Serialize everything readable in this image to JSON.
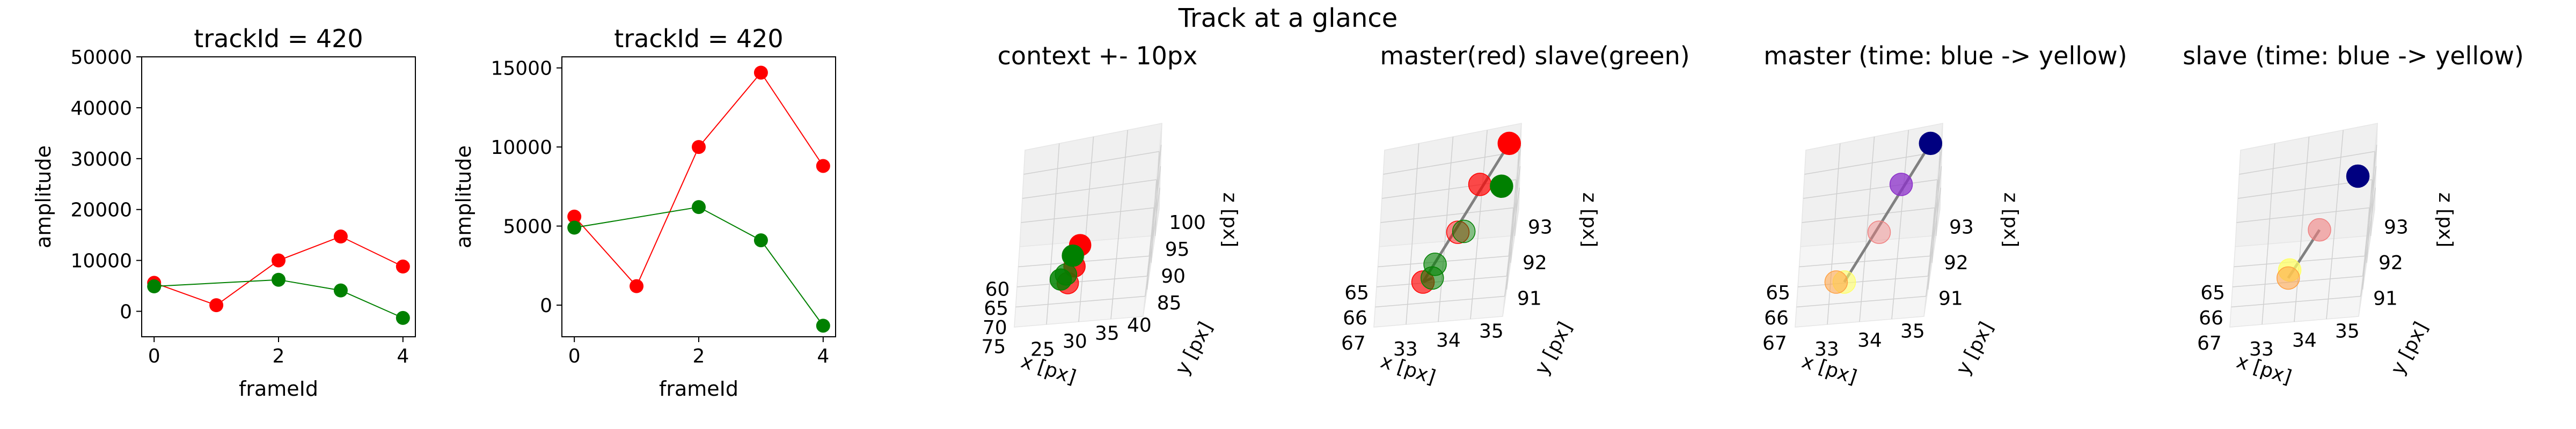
{
  "figure": {
    "suptitle": "Track at a glance"
  },
  "chart_data": [
    {
      "type": "line",
      "title": "trackId = 420",
      "xlabel": "frameId",
      "ylabel": "amplitude",
      "xlim": [
        -0.2,
        4.2
      ],
      "ylim": [
        -5000,
        50000
      ],
      "xticks": [
        0,
        2,
        4
      ],
      "yticks": [
        0,
        10000,
        20000,
        30000,
        40000,
        50000
      ],
      "series": [
        {
          "color": "#ff0000",
          "x": [
            0,
            1,
            2,
            3,
            4
          ],
          "y": [
            5600,
            1200,
            10000,
            14700,
            8800
          ]
        },
        {
          "color": "#008000",
          "x": [
            0,
            2,
            3,
            4
          ],
          "y": [
            4900,
            6200,
            4100,
            -1300
          ]
        }
      ]
    },
    {
      "type": "line",
      "title": "trackId = 420",
      "xlabel": "frameId",
      "ylabel": "amplitude",
      "xlim": [
        -0.2,
        4.2
      ],
      "ylim": [
        -2000,
        15700
      ],
      "xticks": [
        0,
        2,
        4
      ],
      "yticks": [
        0,
        5000,
        10000,
        15000
      ],
      "series": [
        {
          "color": "#ff0000",
          "x": [
            0,
            1,
            2,
            3,
            4
          ],
          "y": [
            5600,
            1200,
            10000,
            14700,
            8800
          ]
        },
        {
          "color": "#008000",
          "x": [
            0,
            2,
            3,
            4
          ],
          "y": [
            4900,
            6200,
            4100,
            -1300
          ]
        }
      ]
    },
    {
      "type": "scatter",
      "projection": "3d",
      "title": "context +- 10px",
      "xlabel": "x [px]",
      "ylabel": "y [px]",
      "zlabel": "z [px]",
      "xticks": [
        "60",
        "65",
        "70",
        "75"
      ],
      "yticks": [
        "25",
        "30",
        "35",
        "40"
      ],
      "zticks": [
        "85",
        "90",
        "95",
        "100"
      ],
      "points": [
        {
          "x": 65,
          "y": 35,
          "z": 93,
          "color": "#ff0000"
        },
        {
          "x": 66,
          "y": 34,
          "z": 92,
          "color": "#ff0000"
        },
        {
          "x": 67,
          "y": 33,
          "z": 91,
          "color": "#ff0000"
        },
        {
          "x": 66,
          "y": 35,
          "z": 92,
          "color": "#008000"
        },
        {
          "x": 67,
          "y": 34,
          "z": 91,
          "color": "#008000"
        },
        {
          "x": 68,
          "y": 33,
          "z": 91,
          "color": "#008000"
        }
      ]
    },
    {
      "type": "scatter",
      "projection": "3d",
      "title": "master(red) slave(green)",
      "xlabel": "x [px]",
      "ylabel": "y [px]",
      "zlabel": "z [px]",
      "xticks": [
        "65",
        "66",
        "67"
      ],
      "yticks": [
        "33",
        "34",
        "35"
      ],
      "zticks": [
        "91",
        "92",
        "93"
      ],
      "points": [
        {
          "x": 65.0,
          "y": 35.0,
          "z": 93.2,
          "color": "#ff0000"
        },
        {
          "x": 65.7,
          "y": 34.6,
          "z": 92.5,
          "color": "#ff0000"
        },
        {
          "x": 66.3,
          "y": 34.1,
          "z": 91.5,
          "color": "#ff0000"
        },
        {
          "x": 67.0,
          "y": 33.5,
          "z": 90.8,
          "color": "#ff0000"
        },
        {
          "x": 66.4,
          "y": 34.8,
          "z": 92.4,
          "color": "#008000"
        },
        {
          "x": 66.9,
          "y": 33.9,
          "z": 91.6,
          "color": "#008000"
        },
        {
          "x": 67.1,
          "y": 33.4,
          "z": 91.0,
          "color": "#008000"
        },
        {
          "x": 67.8,
          "y": 33.0,
          "z": 90.9,
          "color": "#008000"
        }
      ]
    },
    {
      "type": "scatter",
      "projection": "3d",
      "title": "master (time: blue -> yellow)",
      "xlabel": "x [px]",
      "ylabel": "y [px]",
      "zlabel": "z [px]",
      "xticks": [
        "65",
        "66",
        "67"
      ],
      "yticks": [
        "33",
        "34",
        "35"
      ],
      "zticks": [
        "91",
        "92",
        "93"
      ],
      "points": [
        {
          "x": 65.0,
          "y": 35.0,
          "z": 93.2,
          "color": "#000080"
        },
        {
          "x": 65.7,
          "y": 34.6,
          "z": 92.5,
          "color": "#8b2fc9"
        },
        {
          "x": 66.3,
          "y": 34.1,
          "z": 91.5,
          "color": "#f08080"
        },
        {
          "x": 67.0,
          "y": 33.5,
          "z": 90.8,
          "color": "#ffff66"
        },
        {
          "x": 67.0,
          "y": 33.3,
          "z": 90.7,
          "color": "#ffa040"
        }
      ]
    },
    {
      "type": "scatter",
      "projection": "3d",
      "title": "slave (time: blue -> yellow)",
      "xlabel": "x [px]",
      "ylabel": "y [px]",
      "zlabel": "z [px]",
      "xticks": [
        "65",
        "66",
        "67"
      ],
      "yticks": [
        "33",
        "34",
        "35"
      ],
      "zticks": [
        "91",
        "92",
        "93"
      ],
      "points": [
        {
          "x": 66.4,
          "y": 34.8,
          "z": 92.4,
          "color": "#000080"
        },
        {
          "x": 66.9,
          "y": 33.9,
          "z": 91.6,
          "color": "#f08080"
        },
        {
          "x": 67.1,
          "y": 33.4,
          "z": 91.0,
          "color": "#ffff66"
        },
        {
          "x": 67.8,
          "y": 33.0,
          "z": 90.9,
          "color": "#ffa040"
        }
      ]
    }
  ]
}
